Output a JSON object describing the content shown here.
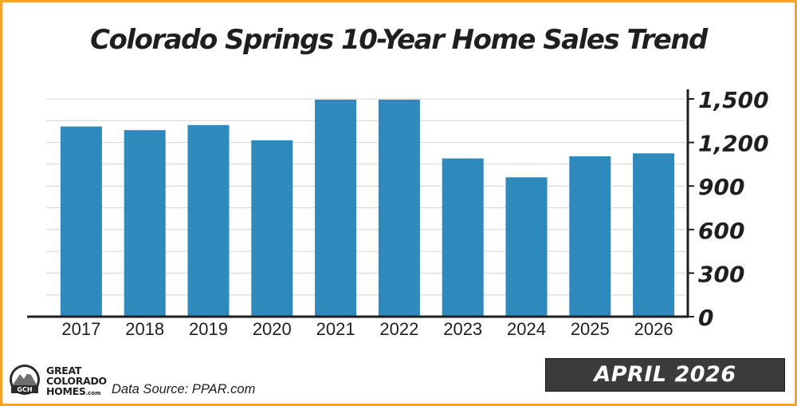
{
  "chart_data": {
    "type": "bar",
    "title": "Colorado Springs 10-Year Home Sales Trend",
    "categories": [
      "2017",
      "2018",
      "2019",
      "2020",
      "2021",
      "2022",
      "2023",
      "2024",
      "2025",
      "2026"
    ],
    "values": [
      1310,
      1285,
      1320,
      1215,
      1495,
      1495,
      1090,
      960,
      1105,
      1125
    ],
    "ylim": [
      0,
      1500
    ],
    "yticks": [
      0,
      300,
      600,
      900,
      1200,
      1500
    ],
    "ytick_labels": [
      "0",
      "300",
      "600",
      "900",
      "1,200",
      "1,500"
    ],
    "xlabel": "",
    "ylabel": "",
    "grid": true,
    "y_axis_side": "right",
    "bar_color": "#2e89bd",
    "grid_color": "#d4d4d4"
  },
  "footer": {
    "brand": {
      "line1": "GREAT",
      "line2": "COLORADO",
      "line3": "HOMES",
      "suffix": ".com",
      "monogram": "GCH"
    },
    "source": "Data Source: PPAR.com",
    "date_badge": "APRIL 2026"
  }
}
